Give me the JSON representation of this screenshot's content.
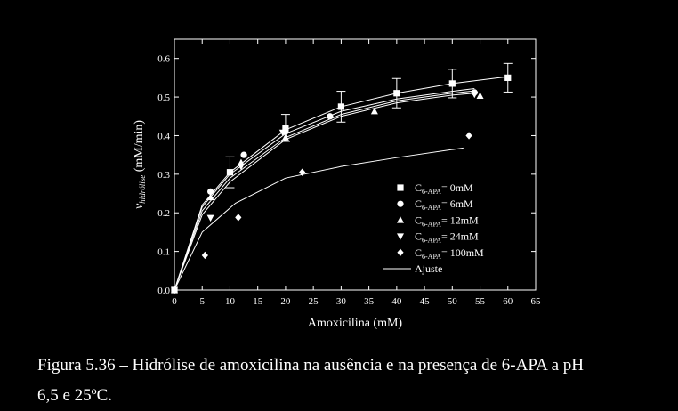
{
  "chart_data": {
    "type": "scatter",
    "xlabel": "Amoxicilina (mM)",
    "ylabel": {
      "main": "v",
      "sub": "hidrólise",
      "unit": " (mM/min)"
    },
    "xlim": [
      0,
      65
    ],
    "ylim": [
      0,
      0.65
    ],
    "xticks": [
      0,
      5,
      10,
      15,
      20,
      25,
      30,
      35,
      40,
      45,
      50,
      55,
      60,
      65
    ],
    "yticks": [
      0.0,
      0.1,
      0.2,
      0.3,
      0.4,
      0.5,
      0.6
    ],
    "grid": false,
    "legend_position": "bottom-right",
    "series": [
      {
        "name": "C6-APA= 0mM",
        "legend": {
          "pre": "C",
          "sub": "6-APA",
          "post": "= 0mM"
        },
        "marker": "square",
        "x": [
          0,
          10,
          20,
          30,
          40,
          50,
          60
        ],
        "y": [
          0.0,
          0.305,
          0.42,
          0.475,
          0.51,
          0.535,
          0.55
        ],
        "err": [
          0,
          0.04,
          0.035,
          0.04,
          0.038,
          0.037,
          0.037
        ]
      },
      {
        "name": "C6-APA= 6mM",
        "legend": {
          "pre": "C",
          "sub": "6-APA",
          "post": "= 6mM"
        },
        "marker": "circle",
        "x": [
          0,
          6.5,
          12.5,
          20,
          28,
          54
        ],
        "y": [
          0.0,
          0.255,
          0.35,
          0.41,
          0.45,
          0.512
        ]
      },
      {
        "name": "C6-APA= 12mM",
        "legend": {
          "pre": "C",
          "sub": "6-APA",
          "post": "= 12mM"
        },
        "marker": "triangle-up",
        "x": [
          0,
          6.5,
          12,
          20,
          36,
          55
        ],
        "y": [
          0.0,
          0.24,
          0.33,
          0.395,
          0.463,
          0.503
        ]
      },
      {
        "name": "C6-APA= 24mM",
        "legend": {
          "pre": "C",
          "sub": "6-APA",
          "post": "= 24mM"
        },
        "marker": "triangle-down",
        "x": [
          0,
          6.5,
          12,
          19.5,
          54
        ],
        "y": [
          0.0,
          0.187,
          0.32,
          0.408,
          0.507
        ]
      },
      {
        "name": "C6-APA= 100mM",
        "legend": {
          "pre": "C",
          "sub": "6-APA",
          "post": "= 100mM"
        },
        "marker": "diamond",
        "x": [
          0,
          5.5,
          11.5,
          23,
          53
        ],
        "y": [
          0.0,
          0.09,
          0.188,
          0.305,
          0.4
        ]
      }
    ],
    "fits": [
      {
        "x": [
          0,
          5,
          10,
          20,
          30,
          40,
          50,
          60
        ],
        "y": [
          0.0,
          0.22,
          0.305,
          0.415,
          0.475,
          0.51,
          0.535,
          0.553
        ]
      },
      {
        "x": [
          0,
          5,
          10,
          20,
          30,
          40,
          50,
          54
        ],
        "y": [
          0.0,
          0.215,
          0.3,
          0.405,
          0.463,
          0.495,
          0.515,
          0.522
        ]
      },
      {
        "x": [
          0,
          5,
          10,
          20,
          30,
          40,
          50,
          54
        ],
        "y": [
          0.0,
          0.205,
          0.29,
          0.395,
          0.455,
          0.49,
          0.51,
          0.516
        ]
      },
      {
        "x": [
          0,
          5,
          10,
          20,
          30,
          40,
          50,
          54
        ],
        "y": [
          0.0,
          0.195,
          0.28,
          0.39,
          0.45,
          0.485,
          0.505,
          0.51
        ]
      },
      {
        "x": [
          0,
          5,
          11,
          20,
          30,
          40,
          52
        ],
        "y": [
          0.0,
          0.15,
          0.225,
          0.29,
          0.32,
          0.343,
          0.368
        ]
      }
    ],
    "fit_legend": "Ajuste"
  },
  "caption": {
    "line1": "Figura 5.36 – Hidrólise de amoxicilina na ausência e na presença de 6-APA a pH",
    "line2": "6,5 e 25ºC."
  }
}
